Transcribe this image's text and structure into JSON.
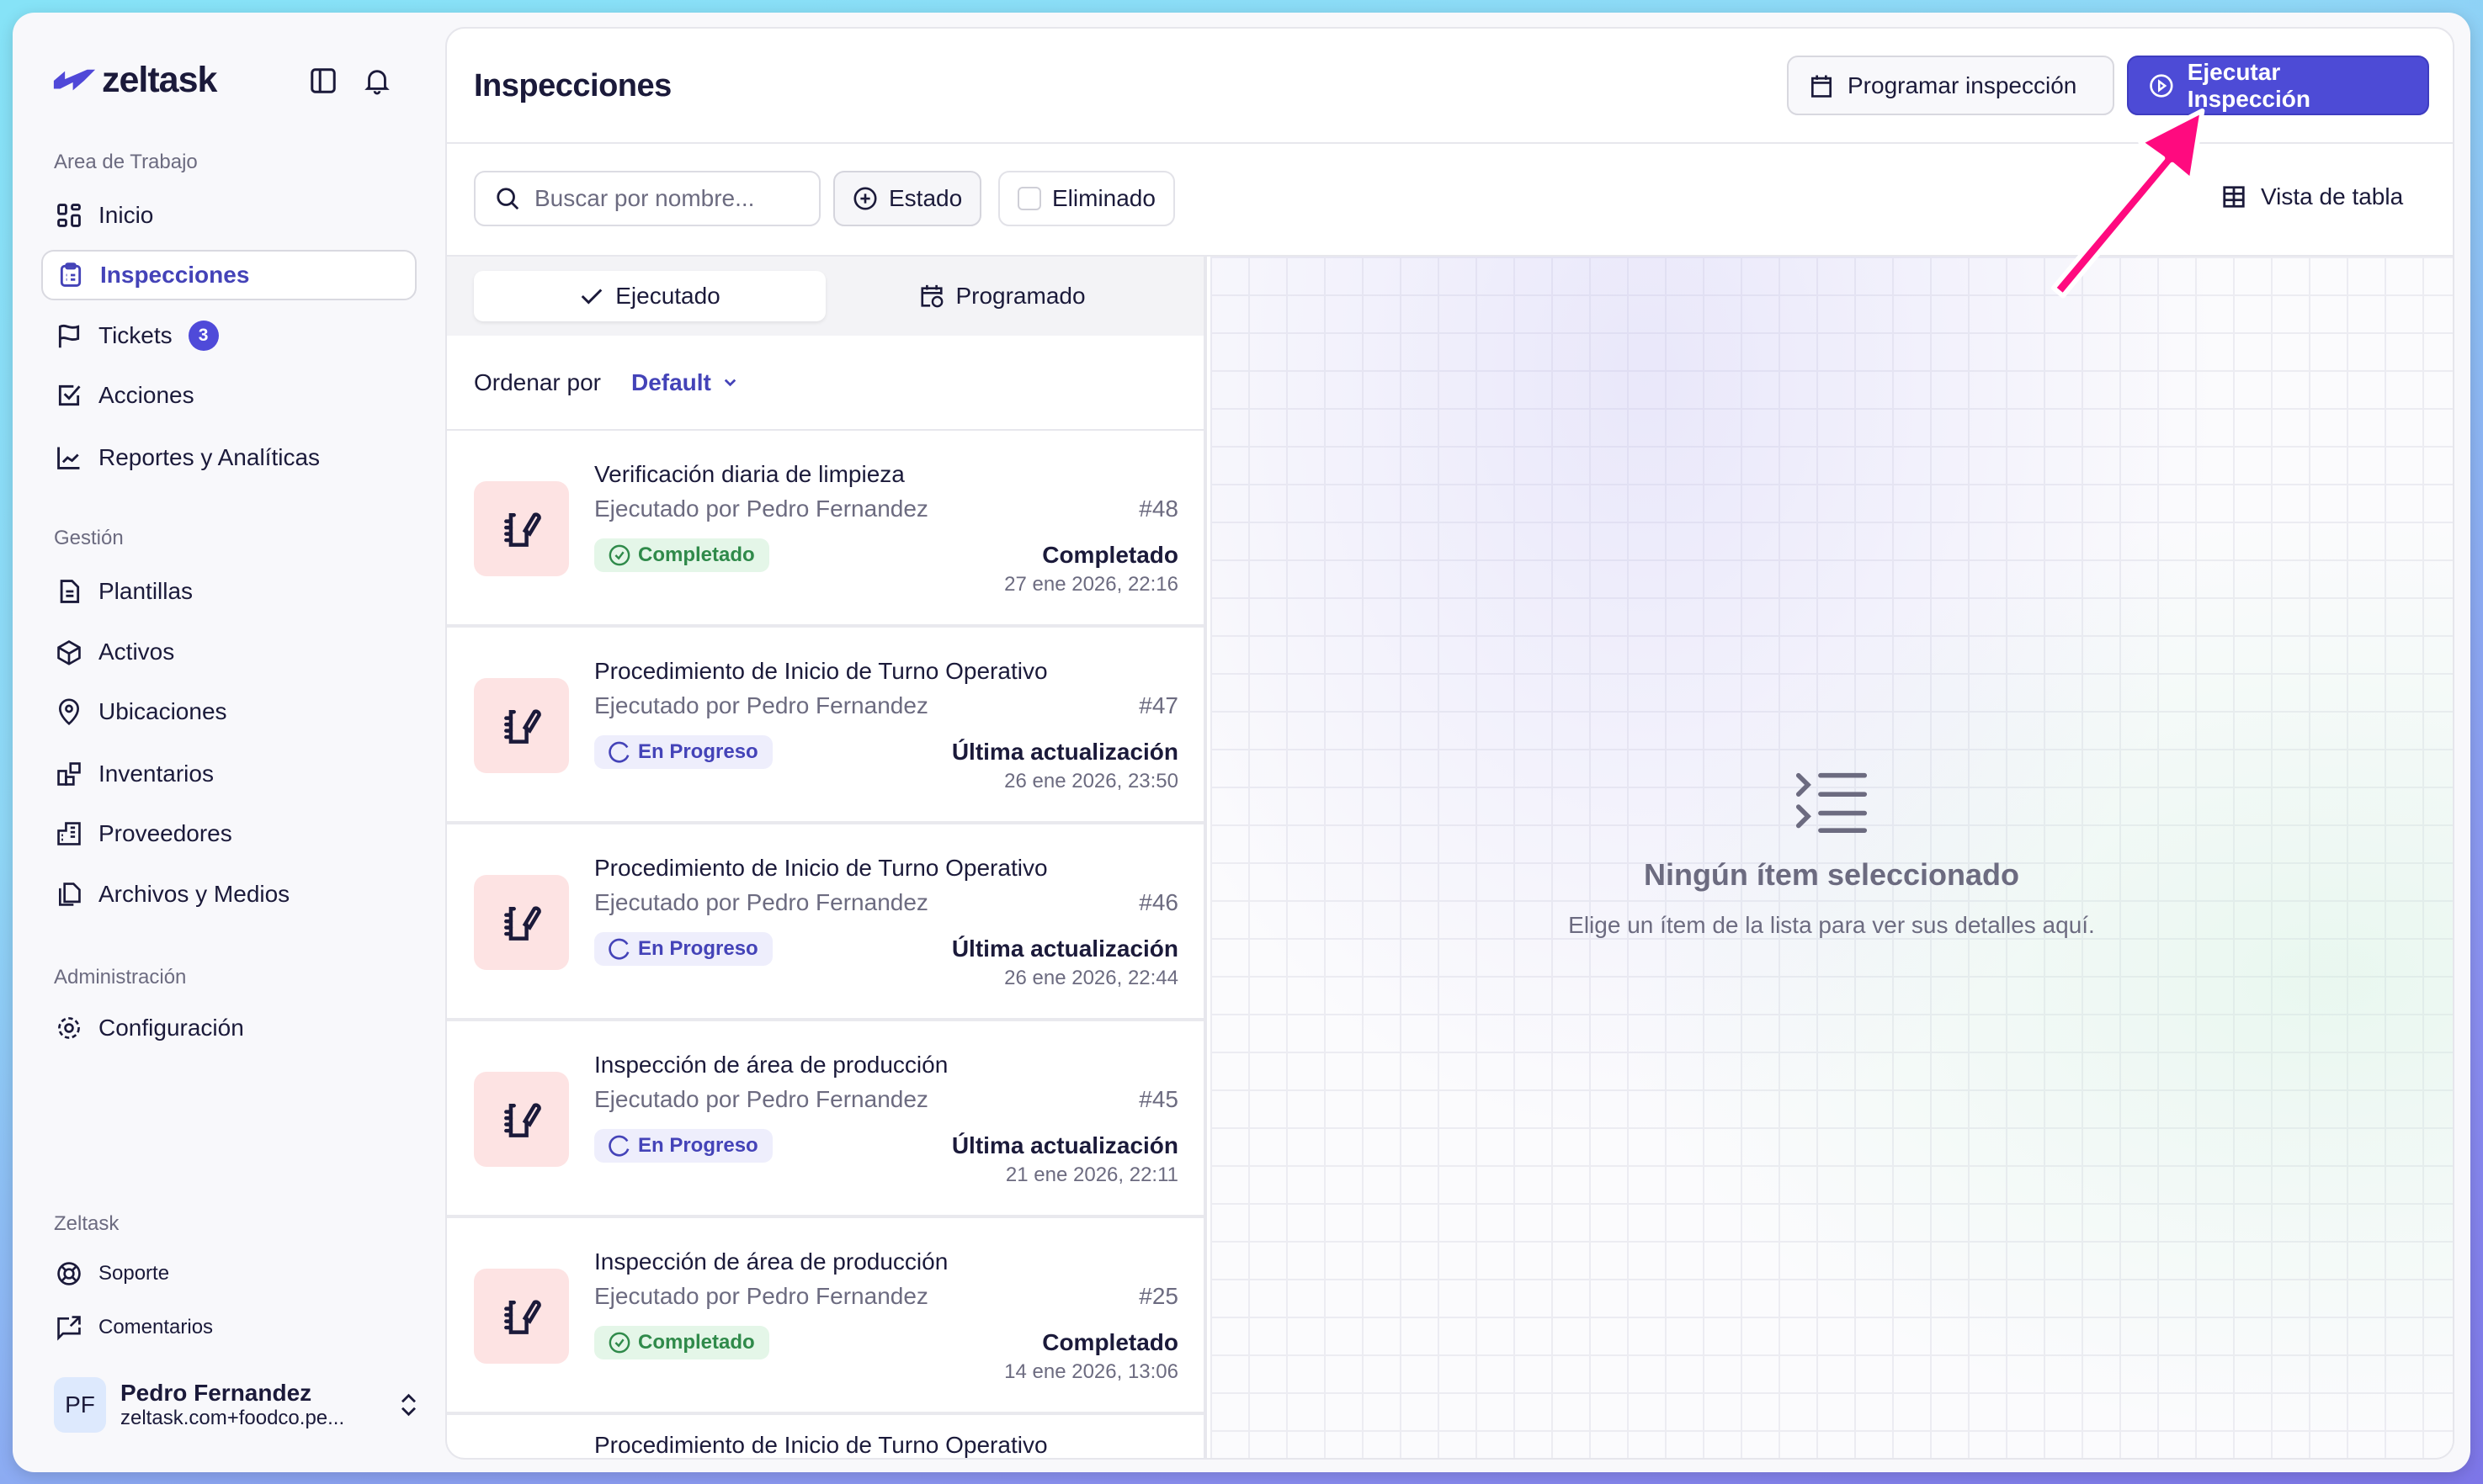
{
  "app": {
    "logo": "zeltask",
    "title": "Inspecciones"
  },
  "sidebar": {
    "sections": [
      "Area de Trabajo",
      "Gestión",
      "Administración",
      "Zeltask"
    ],
    "workspace": [
      {
        "label": "Inicio",
        "icon": "grid-icon"
      },
      {
        "label": "Inspecciones",
        "icon": "clipboard-icon",
        "active": true
      },
      {
        "label": "Tickets",
        "icon": "flag-icon",
        "badge": "3"
      },
      {
        "label": "Acciones",
        "icon": "check-square-icon"
      },
      {
        "label": "Reportes y Analíticas",
        "icon": "chart-line-icon"
      }
    ],
    "management": [
      {
        "label": "Plantillas"
      },
      {
        "label": "Activos"
      },
      {
        "label": "Ubicaciones"
      },
      {
        "label": "Inventarios"
      },
      {
        "label": "Proveedores"
      },
      {
        "label": "Archivos y Medios"
      }
    ],
    "admin": [
      {
        "label": "Configuración"
      }
    ],
    "footer": [
      {
        "label": "Soporte"
      },
      {
        "label": "Comentarios"
      }
    ],
    "user": {
      "initials": "PF",
      "name": "Pedro Fernandez",
      "email": "zeltask.com+foodco.pe..."
    }
  },
  "header": {
    "schedule_label": "Programar inspección",
    "run_label": "Ejecutar Inspección",
    "accent": "#4d4bd6"
  },
  "toolbar": {
    "search_placeholder": "Buscar por nombre...",
    "status_label": "Estado",
    "deleted_label": "Eliminado",
    "table_view_label": "Vista de tabla"
  },
  "tabs": [
    {
      "label": "Ejecutado",
      "active": true
    },
    {
      "label": "Programado"
    }
  ],
  "sort": {
    "label": "Ordenar por",
    "value": "Default"
  },
  "items": [
    {
      "title": "Verificación diaria de limpieza",
      "by": "Ejecutado por Pedro Fernandez",
      "number": "#48",
      "badge": "Completado",
      "status_label": "Completado",
      "date": "27 ene 2026, 22:16"
    },
    {
      "title": "Procedimiento de Inicio de Turno Operativo",
      "by": "Ejecutado por Pedro Fernandez",
      "number": "#47",
      "badge": "En Progreso",
      "status_label": "Última actualización",
      "date": "26 ene 2026, 23:50"
    },
    {
      "title": "Procedimiento de Inicio de Turno Operativo",
      "by": "Ejecutado por Pedro Fernandez",
      "number": "#46",
      "badge": "En Progreso",
      "status_label": "Última actualización",
      "date": "26 ene 2026, 22:44"
    },
    {
      "title": "Inspección de área de producción",
      "by": "Ejecutado por Pedro Fernandez",
      "number": "#45",
      "badge": "En Progreso",
      "status_label": "Última actualización",
      "date": "21 ene 2026, 22:11"
    },
    {
      "title": "Inspección de área de producción",
      "by": "Ejecutado por Pedro Fernandez",
      "number": "#25",
      "badge": "Completado",
      "status_label": "Completado",
      "date": "14 ene 2026, 13:06"
    },
    {
      "title": "Procedimiento de Inicio de Turno Operativo"
    }
  ],
  "empty": {
    "title": "Ningún ítem seleccionado",
    "subtitle": "Elige un ítem de la lista para ver sus detalles aquí."
  },
  "annotation": {
    "color": "#ff0a7f"
  }
}
